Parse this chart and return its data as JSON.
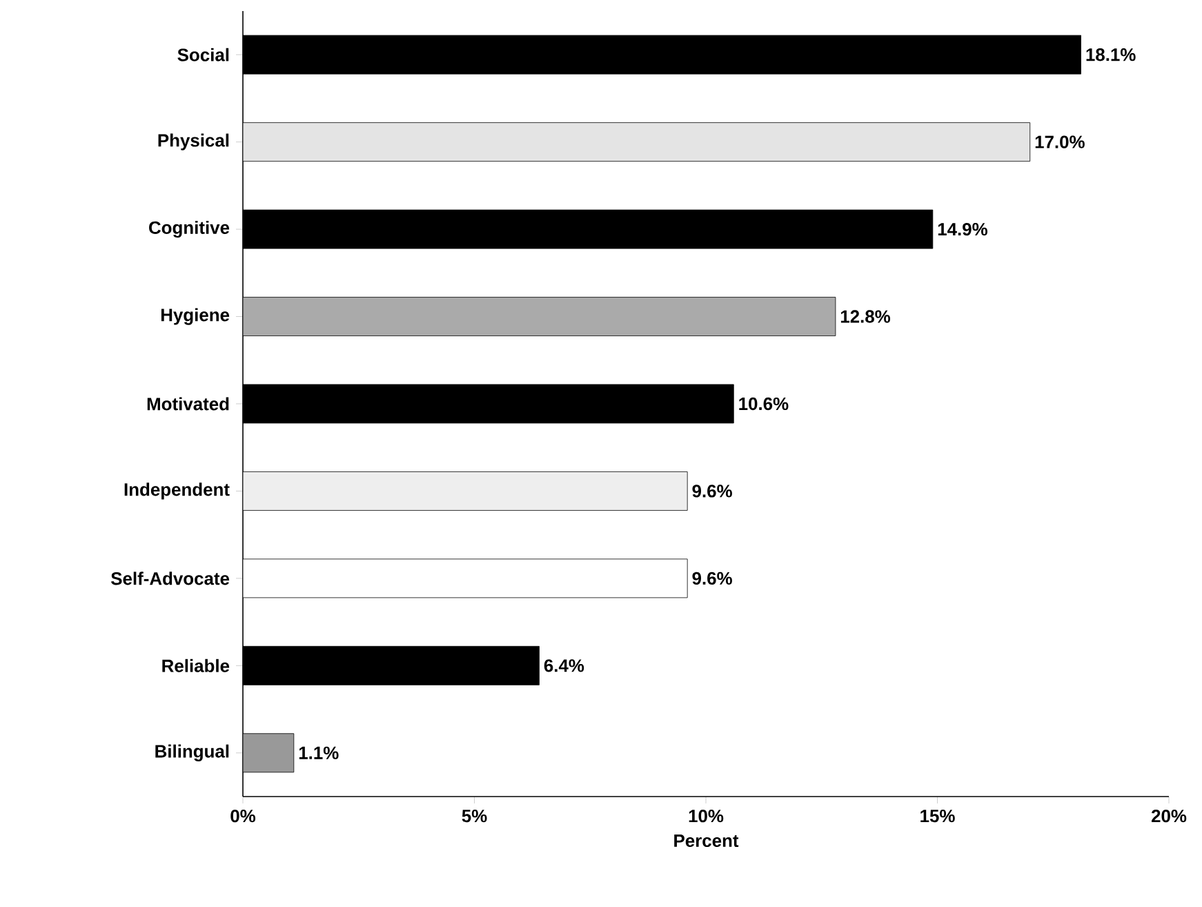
{
  "chart_data": {
    "type": "bar",
    "orientation": "horizontal",
    "xlabel": "Percent",
    "categories": [
      "Social",
      "Physical",
      "Cognitive",
      "Hygiene",
      "Motivated",
      "Independent",
      "Self-Advocate",
      "Reliable",
      "Bilingual"
    ],
    "values": [
      18.1,
      17.0,
      14.9,
      12.8,
      10.6,
      9.6,
      9.6,
      6.4,
      1.1
    ],
    "colors": [
      "#000000",
      "#e4e4e4",
      "#000000",
      "#aaaaaa",
      "#000000",
      "#eeeeee",
      "#ffffff",
      "#000000",
      "#999999"
    ],
    "value_labels": [
      "18.1%",
      "17.0%",
      "14.9%",
      "12.8%",
      "10.6%",
      "9.6%",
      "9.6%",
      "6.4%",
      "1.1%"
    ],
    "xlim": [
      0,
      20
    ],
    "xticks": [
      {
        "value": 0,
        "label": "0%"
      },
      {
        "value": 5,
        "label": "5%"
      },
      {
        "value": 10,
        "label": "10%"
      },
      {
        "value": 15,
        "label": "15%"
      },
      {
        "value": 20,
        "label": "20%"
      }
    ]
  }
}
